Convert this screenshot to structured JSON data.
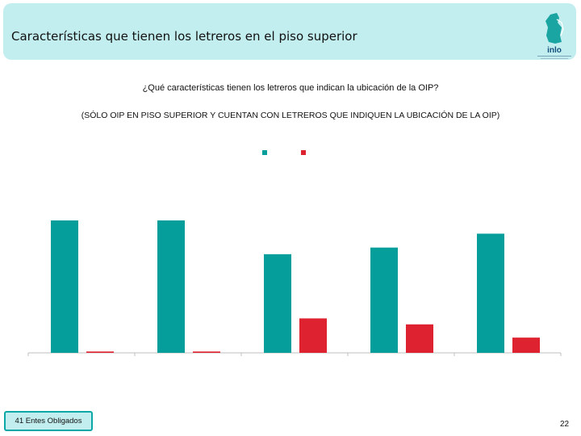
{
  "header": {
    "title": "Características que tienen los letreros en el piso superior",
    "logo_text": "inlo"
  },
  "question": "¿Qué características tienen los letreros que indican la ubicación de la OIP?",
  "subtitle": "(SÓLO OIP EN PISO SUPERIOR Y CUENTAN CON LETREROS QUE INDIQUEN LA UBICACIÓN DE LA OIP)",
  "footer": {
    "label": "41 Entes Obligados",
    "page_number": "22"
  },
  "colors": {
    "series_a": "#069e9b",
    "series_b": "#de2230",
    "header_bg": "#c2eeef",
    "axis": "#bfbfbf"
  },
  "chart_data": {
    "type": "bar",
    "categories": [
      "",
      "",
      "",
      "",
      ""
    ],
    "series": [
      {
        "values": [
          100,
          100,
          74.5,
          79.5,
          90
        ]
      },
      {
        "values": [
          1,
          1,
          26,
          21.5,
          11.5
        ]
      }
    ],
    "ylim": [
      0,
      100
    ],
    "grid": false,
    "legend_placement": "top"
  }
}
